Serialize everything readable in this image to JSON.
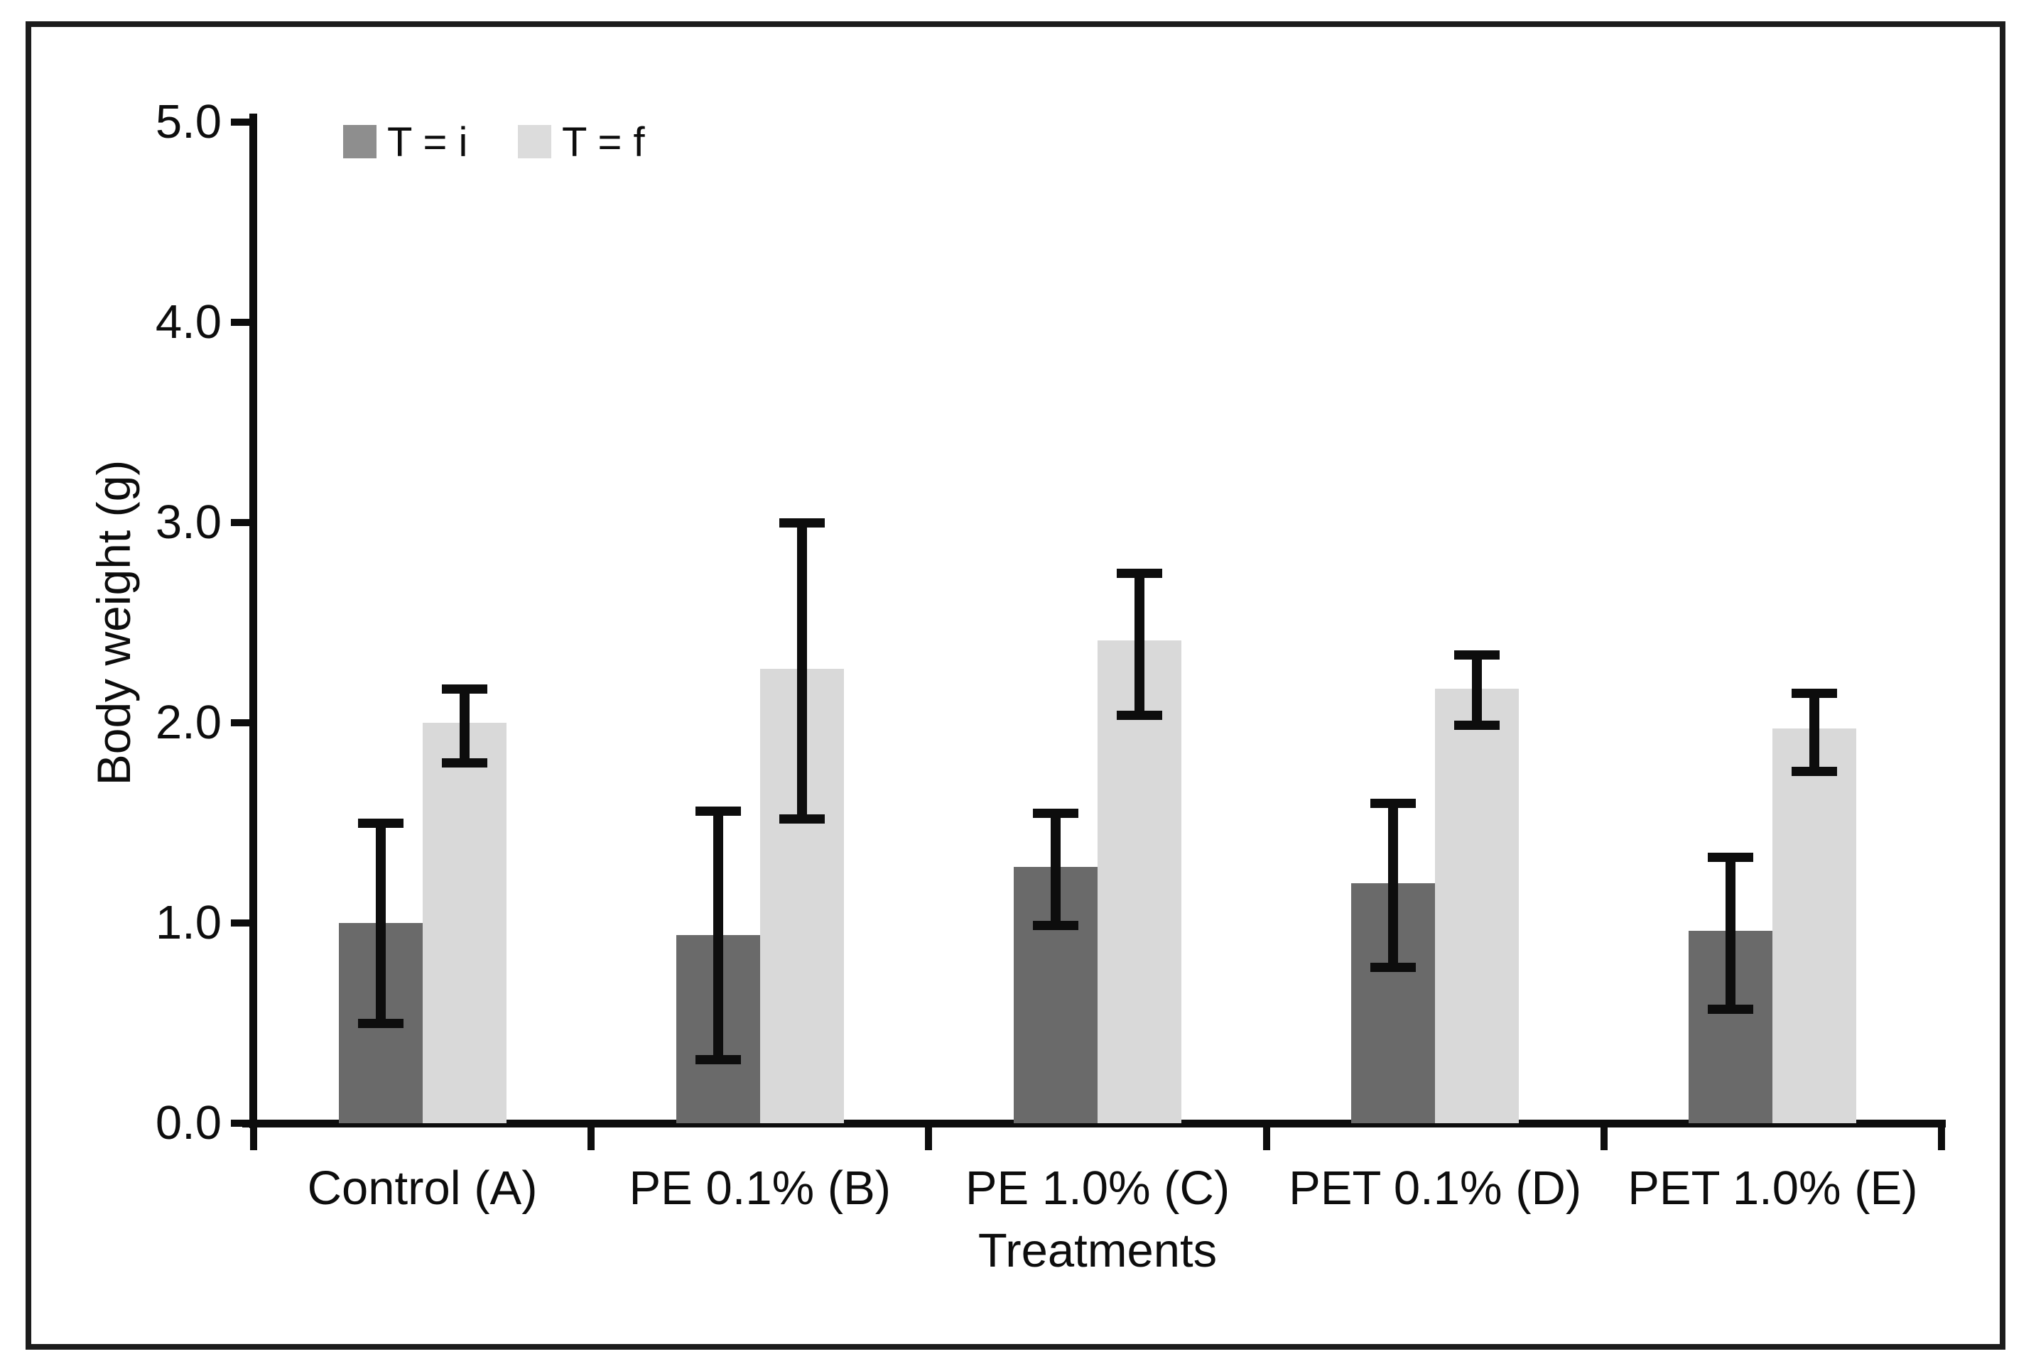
{
  "figure": {
    "background": "#ffffff",
    "frame_color": "#1c1c1c",
    "axis_color": "#0d0d0d",
    "error_bar_color": "#0d0d0d"
  },
  "chart_data": {
    "type": "bar",
    "title": "",
    "xlabel": "Treatments",
    "ylabel": "Body weight (g)",
    "categories": [
      "Control (A)",
      "PE 0.1% (B)",
      "PE 1.0% (C)",
      "PET 0.1% (D)",
      "PET 1.0% (E)"
    ],
    "series": [
      {
        "name": "T = i",
        "color": "#6a6a6a",
        "legend_swatch": "#8e8e8e",
        "values": [
          1.0,
          0.94,
          1.28,
          1.2,
          0.96
        ],
        "error_low": [
          0.5,
          0.32,
          0.99,
          0.78,
          0.57
        ],
        "error_high": [
          1.5,
          1.56,
          1.55,
          1.6,
          1.33
        ]
      },
      {
        "name": "T = f",
        "color": "#d9d9d9",
        "legend_swatch": "#dcdcdc",
        "values": [
          2.0,
          2.27,
          2.41,
          2.17,
          1.97
        ],
        "error_low": [
          1.8,
          1.52,
          2.04,
          1.99,
          1.76
        ],
        "error_high": [
          2.17,
          3.0,
          2.75,
          2.34,
          2.15
        ]
      }
    ],
    "ylim": [
      0,
      5
    ],
    "yticks": [
      "0.0",
      "1.0",
      "2.0",
      "3.0",
      "4.0",
      "5.0"
    ],
    "grid": false,
    "legend_position": "top-left-inside"
  }
}
